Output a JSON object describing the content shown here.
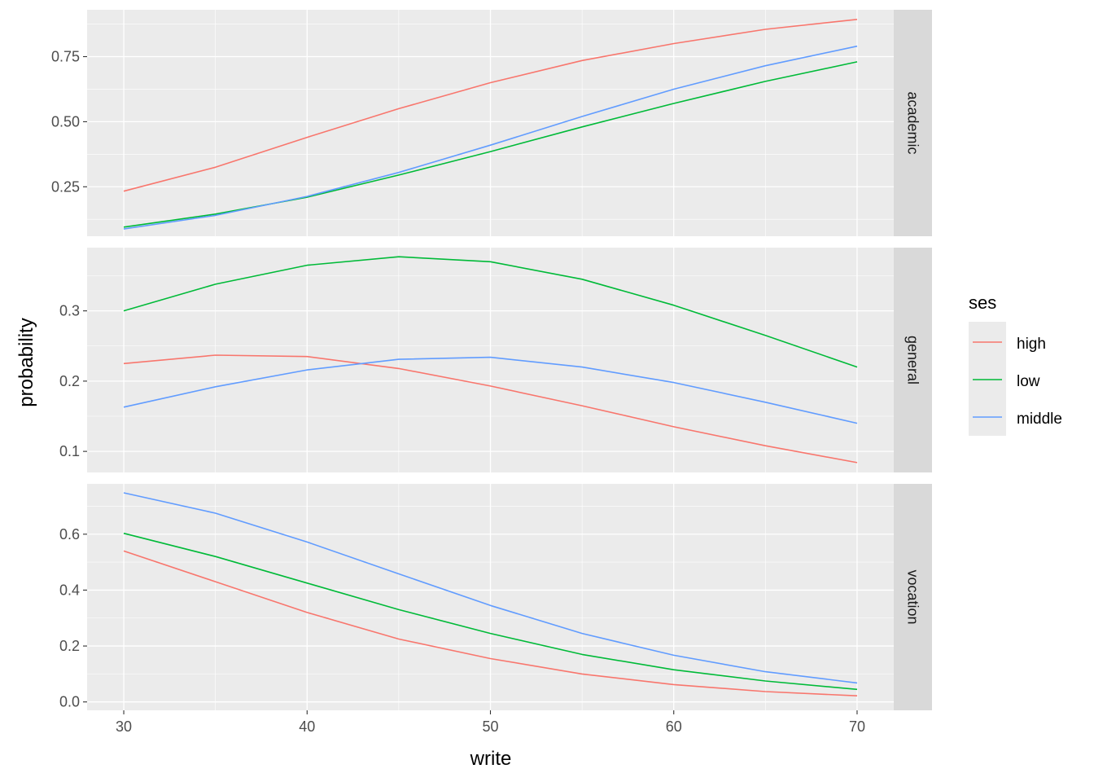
{
  "chart_data": {
    "type": "line",
    "xlabel": "write",
    "ylabel": "probability",
    "x": [
      30,
      35,
      40,
      45,
      50,
      55,
      60,
      65,
      70
    ],
    "xlim": [
      28,
      72
    ],
    "x_ticks": [
      30,
      40,
      50,
      60,
      70
    ],
    "grid": true,
    "legend": {
      "title": "ses",
      "placement": "right",
      "entries": [
        {
          "name": "high",
          "color": "#F8766D"
        },
        {
          "name": "low",
          "color": "#00BA38"
        },
        {
          "name": "middle",
          "color": "#619CFF"
        }
      ]
    },
    "facets": [
      {
        "strip_label": "academic",
        "ylim": [
          0.06,
          0.93
        ],
        "y_ticks": [
          0.25,
          0.5,
          0.75
        ],
        "y_tick_labels": [
          "0.25",
          "0.50",
          "0.75"
        ],
        "series": [
          {
            "name": "high",
            "values": [
              0.233,
              0.325,
              0.44,
              0.55,
              0.65,
              0.735,
              0.8,
              0.855,
              0.893
            ]
          },
          {
            "name": "low",
            "values": [
              0.095,
              0.145,
              0.21,
              0.295,
              0.385,
              0.48,
              0.57,
              0.655,
              0.73
            ]
          },
          {
            "name": "middle",
            "values": [
              0.088,
              0.14,
              0.213,
              0.305,
              0.41,
              0.52,
              0.625,
              0.715,
              0.79
            ]
          }
        ]
      },
      {
        "strip_label": "general",
        "ylim": [
          0.07,
          0.39
        ],
        "y_ticks": [
          0.1,
          0.2,
          0.3
        ],
        "y_tick_labels": [
          "0.1",
          "0.2",
          "0.3"
        ],
        "series": [
          {
            "name": "high",
            "values": [
              0.225,
              0.237,
              0.235,
              0.218,
              0.193,
              0.165,
              0.135,
              0.108,
              0.084
            ]
          },
          {
            "name": "low",
            "values": [
              0.3,
              0.338,
              0.365,
              0.377,
              0.37,
              0.345,
              0.308,
              0.265,
              0.22
            ]
          },
          {
            "name": "middle",
            "values": [
              0.163,
              0.192,
              0.216,
              0.231,
              0.234,
              0.22,
              0.198,
              0.17,
              0.14
            ]
          }
        ]
      },
      {
        "strip_label": "vocation",
        "ylim": [
          -0.03,
          0.78
        ],
        "y_ticks": [
          0.0,
          0.2,
          0.4,
          0.6
        ],
        "y_tick_labels": [
          "0.0",
          "0.2",
          "0.4",
          "0.6"
        ],
        "series": [
          {
            "name": "high",
            "values": [
              0.54,
              0.43,
              0.32,
              0.225,
              0.155,
              0.1,
              0.062,
              0.037,
              0.022
            ]
          },
          {
            "name": "low",
            "values": [
              0.603,
              0.52,
              0.425,
              0.33,
              0.245,
              0.17,
              0.115,
              0.075,
              0.045
            ]
          },
          {
            "name": "middle",
            "values": [
              0.748,
              0.675,
              0.572,
              0.458,
              0.345,
              0.245,
              0.167,
              0.108,
              0.068
            ]
          }
        ]
      }
    ]
  }
}
